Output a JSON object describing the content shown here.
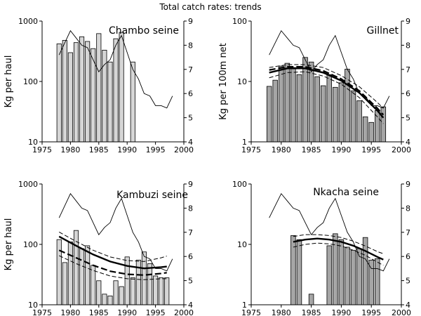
{
  "title": "Total catch rates: trends",
  "colors": {
    "bar_light": "#d6d6d6",
    "bar_dark": "#a6a6a6",
    "line": "#000000"
  },
  "chart_data": [
    {
      "type": "bar",
      "title": "Chambo seine",
      "ylabel": "Kg per haul",
      "y_scale": "log",
      "ylim": [
        10,
        1000
      ],
      "y_ticks": [
        "10",
        "100",
        "1000"
      ],
      "xlim": [
        1975,
        2000
      ],
      "x_ticks": [
        "1975",
        "1980",
        "1985",
        "1990",
        "1995",
        "2000"
      ],
      "y2lim": [
        4,
        9
      ],
      "y2_ticks": [
        "4",
        "5",
        "6",
        "7",
        "8",
        "9"
      ],
      "bar_style": "light",
      "bars": {
        "x": [
          1978,
          1979,
          1980,
          1981,
          1982,
          1983,
          1984,
          1985,
          1986,
          1987,
          1988,
          1989,
          1990,
          1991
        ],
        "values": [
          420,
          480,
          300,
          440,
          550,
          460,
          350,
          620,
          330,
          210,
          510,
          650,
          0,
          210
        ]
      },
      "thin_line": {
        "x": [
          1978,
          1979,
          1980,
          1981,
          1982,
          1983,
          1984,
          1985,
          1986,
          1987,
          1988,
          1989,
          1990,
          1991,
          1992,
          1993,
          1994,
          1995,
          1996,
          1997,
          1998
        ],
        "y": [
          7.6,
          8.1,
          8.6,
          8.3,
          8.0,
          7.9,
          7.4,
          6.9,
          7.2,
          7.4,
          8.0,
          8.4,
          7.7,
          7.0,
          6.6,
          6.0,
          5.9,
          5.5,
          5.5,
          5.4,
          5.9
        ]
      }
    },
    {
      "type": "bar",
      "title": "Gillnet",
      "ylabel": "Kg per 100m net",
      "y_scale": "log",
      "ylim": [
        1,
        100
      ],
      "y_ticks": [
        "1",
        "10",
        "100"
      ],
      "xlim": [
        1975,
        2000
      ],
      "x_ticks": [
        "1975",
        "1980",
        "1985",
        "1990",
        "1995",
        "2000"
      ],
      "y2lim": [
        4,
        9
      ],
      "y2_ticks": [
        "4",
        "5",
        "6",
        "7",
        "8",
        "9"
      ],
      "bar_style": "dark",
      "bars": {
        "x": [
          1978,
          1979,
          1980,
          1981,
          1982,
          1983,
          1984,
          1985,
          1986,
          1987,
          1988,
          1989,
          1990,
          1991,
          1992,
          1993,
          1994,
          1995,
          1996,
          1997
        ],
        "values": [
          8.3,
          10.5,
          18.0,
          20.0,
          17.0,
          13.0,
          25.0,
          21.0,
          12.0,
          8.5,
          13.0,
          8.0,
          9.5,
          16.0,
          7.0,
          4.8,
          2.6,
          2.1,
          3.3,
          3.8
        ]
      },
      "thin_line": {
        "x": [
          1978,
          1979,
          1980,
          1981,
          1982,
          1983,
          1984,
          1985,
          1986,
          1987,
          1988,
          1989,
          1990,
          1991,
          1992,
          1993,
          1994,
          1995,
          1996,
          1997,
          1998
        ],
        "y": [
          7.6,
          8.1,
          8.6,
          8.3,
          8.0,
          7.9,
          7.4,
          6.9,
          7.2,
          7.4,
          8.0,
          8.4,
          7.7,
          7.0,
          6.6,
          6.0,
          5.9,
          5.5,
          5.5,
          5.4,
          5.9
        ]
      },
      "trend": {
        "x": [
          1978,
          1981,
          1984,
          1987,
          1990,
          1993,
          1996,
          1997
        ],
        "y": [
          14,
          16.5,
          16.5,
          14,
          10.3,
          6.5,
          3.3,
          2.5
        ]
      },
      "trend2": {
        "x": [
          1978,
          1981,
          1984,
          1987,
          1990,
          1993,
          1996,
          1997
        ],
        "y": [
          15.5,
          17.5,
          17.5,
          15.0,
          11.0,
          7.0,
          3.6,
          2.8
        ]
      },
      "trend_ci_upper": {
        "x": [
          1978,
          1981,
          1984,
          1987,
          1990,
          1993,
          1996,
          1997
        ],
        "y": [
          17,
          19,
          19,
          17,
          12.5,
          8.2,
          4.5,
          3.6
        ]
      },
      "trend_ci_lower": {
        "x": [
          1978,
          1981,
          1984,
          1987,
          1990,
          1993,
          1996,
          1997
        ],
        "y": [
          11.5,
          14,
          14.5,
          12.3,
          9.0,
          5.4,
          2.6,
          2.0
        ]
      }
    },
    {
      "type": "bar",
      "title": "Kambuzi seine",
      "ylabel": "Kg per haul",
      "y_scale": "log",
      "ylim": [
        10,
        1000
      ],
      "y_ticks": [
        "10",
        "100",
        "1000"
      ],
      "xlim": [
        1975,
        2000
      ],
      "x_ticks": [
        "1975",
        "1980",
        "1985",
        "1990",
        "1995",
        "2000"
      ],
      "y2lim": [
        4,
        9
      ],
      "y2_ticks": [
        "4",
        "5",
        "6",
        "7",
        "8",
        "9"
      ],
      "bar_style": "light",
      "bars": {
        "x": [
          1978,
          1979,
          1980,
          1981,
          1982,
          1983,
          1984,
          1985,
          1986,
          1987,
          1988,
          1989,
          1990,
          1991,
          1992,
          1993,
          1994,
          1995,
          1996,
          1997
        ],
        "values": [
          120,
          50,
          110,
          170,
          85,
          95,
          45,
          25,
          15,
          14,
          25,
          20,
          62,
          28,
          55,
          75,
          48,
          30,
          28,
          28
        ]
      },
      "thin_line": {
        "x": [
          1978,
          1979,
          1980,
          1981,
          1982,
          1983,
          1984,
          1985,
          1986,
          1987,
          1988,
          1989,
          1990,
          1991,
          1992,
          1993,
          1994,
          1995,
          1996,
          1997,
          1998
        ],
        "y": [
          7.6,
          8.1,
          8.6,
          8.3,
          8.0,
          7.9,
          7.4,
          6.9,
          7.2,
          7.4,
          8.0,
          8.4,
          7.7,
          7.0,
          6.6,
          6.0,
          5.9,
          5.5,
          5.5,
          5.4,
          5.9
        ]
      },
      "trend": {
        "x": [
          1978,
          1981,
          1984,
          1987,
          1990,
          1993,
          1996,
          1997
        ],
        "y": [
          135,
          95,
          68,
          52,
          44,
          40,
          42,
          43
        ]
      },
      "trend2": {
        "x": [
          1978,
          1981,
          1984,
          1987,
          1990,
          1993,
          1996,
          1997
        ],
        "y": [
          80,
          60,
          45,
          36,
          32,
          31,
          33,
          34
        ]
      },
      "trend_ci_upper": {
        "x": [
          1978,
          1981,
          1984,
          1987,
          1990,
          1993,
          1996,
          1997
        ],
        "y": [
          160,
          112,
          80,
          62,
          54,
          52,
          60,
          64
        ]
      },
      "trend_ci_lower": {
        "x": [
          1978,
          1981,
          1984,
          1987,
          1990,
          1993,
          1996,
          1997
        ],
        "y": [
          65,
          48,
          37,
          30,
          27,
          26,
          27,
          27
        ]
      }
    },
    {
      "type": "bar",
      "title": "Nkacha seine",
      "ylabel": "",
      "y_scale": "log",
      "ylim": [
        1,
        100
      ],
      "y_ticks": [
        "1",
        "10",
        "100"
      ],
      "xlim": [
        1975,
        2000
      ],
      "x_ticks": [
        "1975",
        "1980",
        "1985",
        "1990",
        "1995",
        "2000"
      ],
      "y2lim": [
        4,
        9
      ],
      "y2_ticks": [
        "4",
        "5",
        "6",
        "7",
        "8",
        "9"
      ],
      "bar_style": "dark",
      "bars": {
        "x": [
          1982,
          1983,
          1985,
          1988,
          1989,
          1990,
          1991,
          1992,
          1993,
          1994,
          1995,
          1996
        ],
        "values": [
          14,
          12,
          1.5,
          9.5,
          15,
          12,
          9,
          8,
          8.5,
          13,
          5.5,
          5.8
        ]
      },
      "thin_line": {
        "x": [
          1978,
          1979,
          1980,
          1981,
          1982,
          1983,
          1984,
          1985,
          1986,
          1987,
          1988,
          1989,
          1990,
          1991,
          1992,
          1993,
          1994,
          1995,
          1996,
          1997,
          1998
        ],
        "y": [
          7.6,
          8.1,
          8.6,
          8.3,
          8.0,
          7.9,
          7.4,
          6.9,
          7.2,
          7.4,
          8.0,
          8.4,
          7.7,
          7.0,
          6.6,
          6.0,
          5.9,
          5.5,
          5.5,
          5.4,
          5.9
        ]
      },
      "trend": {
        "x": [
          1982,
          1984,
          1986,
          1988,
          1990,
          1992,
          1994,
          1996,
          1997
        ],
        "y": [
          11,
          12,
          12.5,
          12,
          11,
          9.5,
          7.8,
          6.2,
          5.6
        ]
      },
      "trend_ci_upper": {
        "x": [
          1982,
          1984,
          1986,
          1988,
          1990,
          1992,
          1994,
          1996,
          1997
        ],
        "y": [
          13.5,
          14.5,
          14.5,
          14,
          13,
          11.3,
          9.4,
          7.6,
          7.0
        ]
      },
      "trend_ci_lower": {
        "x": [
          1982,
          1984,
          1986,
          1988,
          1990,
          1992,
          1994,
          1996,
          1997
        ],
        "y": [
          9,
          10,
          10.5,
          10.2,
          9.4,
          8.0,
          6.6,
          5.1,
          4.5
        ]
      }
    }
  ]
}
